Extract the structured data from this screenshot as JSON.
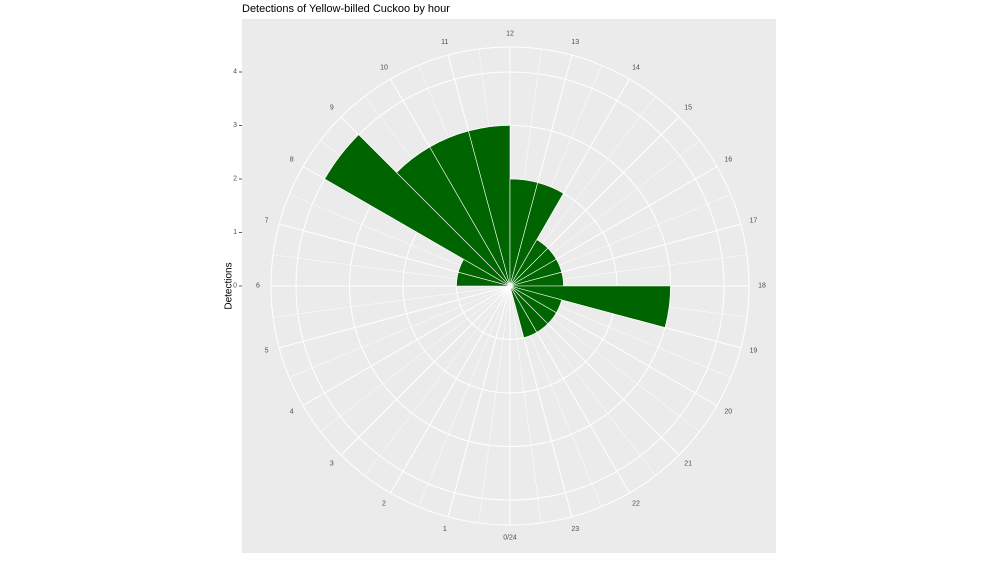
{
  "chart_data": {
    "type": "bar",
    "polar": true,
    "title": "Detections of Yellow-billed Cuckoo by hour",
    "xlabel": "",
    "ylabel": "Detections",
    "hour_labels": [
      "0/24",
      "1",
      "2",
      "3",
      "4",
      "5",
      "6",
      "7",
      "8",
      "9",
      "10",
      "11",
      "12",
      "13",
      "14",
      "15",
      "16",
      "17",
      "18",
      "19",
      "20",
      "21",
      "22",
      "23"
    ],
    "x": [
      6.5,
      7.5,
      8.5,
      9.5,
      10.5,
      11.5,
      12.5,
      13.5,
      14.5,
      15.5,
      16.5,
      17.5,
      18.5,
      19.5,
      20.5,
      21.5,
      22.5
    ],
    "values": [
      1,
      1,
      4,
      3,
      3,
      3,
      2,
      2,
      1,
      1,
      1,
      1,
      3,
      1,
      1,
      1,
      1
    ],
    "ylim": [
      0,
      4
    ],
    "yticks": [
      "0",
      "1",
      "2",
      "3",
      "4"
    ],
    "bar_color": "#006400",
    "panel_color": "#ebebeb",
    "grid": true,
    "legend": "none"
  }
}
